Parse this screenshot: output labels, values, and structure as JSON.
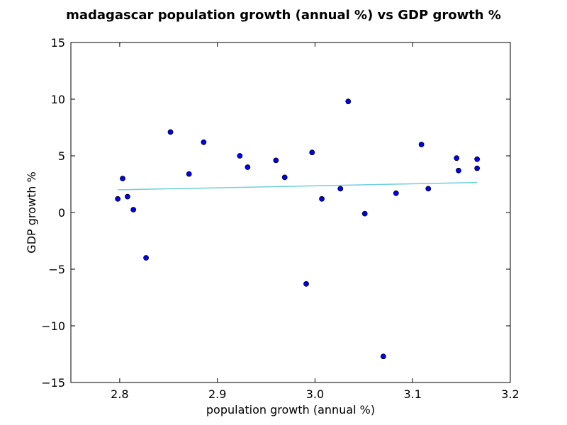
{
  "chart_data": {
    "type": "scatter",
    "title": "madagascar population growth (annual %) vs GDP growth %",
    "xlabel": "population growth (annual %)",
    "ylabel": "GDP growth %",
    "xlim": [
      2.75,
      3.2
    ],
    "ylim": [
      -15,
      15
    ],
    "xticks": [
      2.8,
      2.9,
      3.0,
      3.1,
      3.2
    ],
    "xtick_labels": [
      "2.8",
      "2.9",
      "3.0",
      "3.1",
      "3.2"
    ],
    "yticks": [
      15,
      10,
      5,
      0,
      -5,
      -10,
      -15
    ],
    "ytick_labels": [
      "15",
      "10",
      "5",
      "0",
      "−5",
      "−10",
      "−15"
    ],
    "grid": false,
    "point_color": "#0000ff",
    "point_edge_color": "#000000",
    "trend_color": "#6fcfdc",
    "points": [
      {
        "x": 2.798,
        "y": 1.2
      },
      {
        "x": 2.803,
        "y": 3.0
      },
      {
        "x": 2.808,
        "y": 1.4
      },
      {
        "x": 2.814,
        "y": 0.25
      },
      {
        "x": 2.827,
        "y": -4.0
      },
      {
        "x": 2.852,
        "y": 7.1
      },
      {
        "x": 2.871,
        "y": 3.4
      },
      {
        "x": 2.886,
        "y": 6.2
      },
      {
        "x": 2.923,
        "y": 5.0
      },
      {
        "x": 2.931,
        "y": 4.0
      },
      {
        "x": 2.96,
        "y": 4.6
      },
      {
        "x": 2.969,
        "y": 3.1
      },
      {
        "x": 2.991,
        "y": -6.3
      },
      {
        "x": 2.997,
        "y": 5.3
      },
      {
        "x": 3.007,
        "y": 1.2
      },
      {
        "x": 3.026,
        "y": 2.1
      },
      {
        "x": 3.034,
        "y": 9.8
      },
      {
        "x": 3.051,
        "y": -0.1
      },
      {
        "x": 3.07,
        "y": -12.7
      },
      {
        "x": 3.083,
        "y": 1.7
      },
      {
        "x": 3.109,
        "y": 6.0
      },
      {
        "x": 3.116,
        "y": 2.1
      },
      {
        "x": 3.145,
        "y": 4.8
      },
      {
        "x": 3.147,
        "y": 3.7
      },
      {
        "x": 3.166,
        "y": 4.7
      },
      {
        "x": 3.166,
        "y": 3.9
      }
    ],
    "trend_line": {
      "x": [
        2.798,
        3.166
      ],
      "y": [
        2.0,
        2.65
      ]
    }
  }
}
